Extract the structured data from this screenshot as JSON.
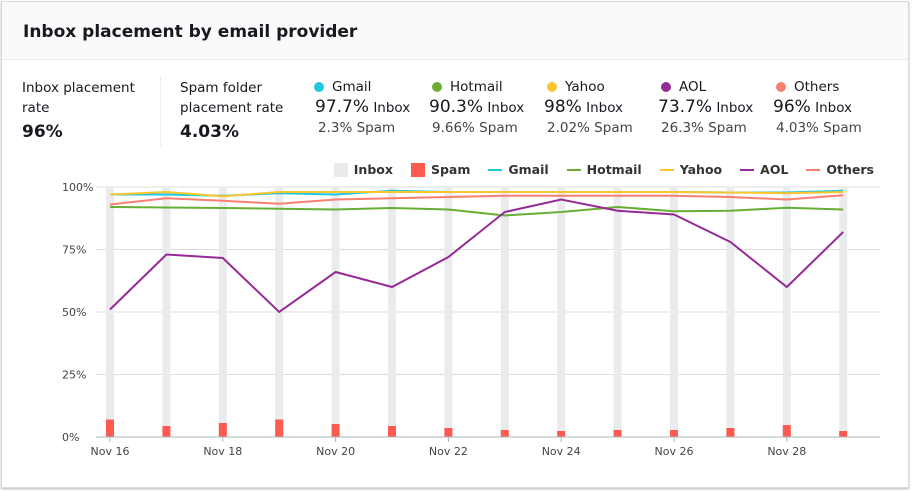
{
  "title": "Inbox placement by email provider",
  "summary": {
    "inbox_label": "Inbox placement rate",
    "inbox_value": "96%",
    "spam_label": "Spam folder placement rate",
    "spam_value": "4.03%"
  },
  "providers": [
    {
      "name": "Gmail",
      "inbox": "97.7%",
      "inbox_label": "Inbox",
      "spam": "2.3% Spam",
      "color": "#1ec8de"
    },
    {
      "name": "Hotmail",
      "inbox": "90.3%",
      "inbox_label": "Inbox",
      "spam": "9.66% Spam",
      "color": "#69ae34"
    },
    {
      "name": "Yahoo",
      "inbox": "98%",
      "inbox_label": "Inbox",
      "spam": "2.02% Spam",
      "color": "#fac62f"
    },
    {
      "name": "AOL",
      "inbox": "73.7%",
      "inbox_label": "Inbox",
      "spam": "26.3% Spam",
      "color": "#962b96"
    },
    {
      "name": "Others",
      "inbox": "96%",
      "inbox_label": "Inbox",
      "spam": "4.03% Spam",
      "color": "#fa7f73"
    }
  ],
  "chart_data": {
    "type": "bar",
    "categories": [
      "Nov 16",
      "Nov 17",
      "Nov 18",
      "Nov 19",
      "Nov 20",
      "Nov 21",
      "Nov 22",
      "Nov 23",
      "Nov 24",
      "Nov 25",
      "Nov 26",
      "Nov 27",
      "Nov 28",
      "Nov 29"
    ],
    "x_tick_labels": [
      "Nov 16",
      "Nov 18",
      "Nov 20",
      "Nov 22",
      "Nov 24",
      "Nov 26",
      "Nov 28"
    ],
    "y_ticks": [
      "0%",
      "25%",
      "50%",
      "75%",
      "100%"
    ],
    "ylim": [
      0,
      100
    ],
    "legend_position": "top-right",
    "inbox_color": "#e9ebed",
    "spam_color": "#ff5a4f",
    "spam": [
      7,
      4.4,
      5.6,
      7,
      5.2,
      4.4,
      3.6,
      2.8,
      2.4,
      2.8,
      2.8,
      3.6,
      4.8,
      2.4
    ],
    "series": [
      {
        "name": "Inbox",
        "kind": "bar",
        "color": "#e9ebed"
      },
      {
        "name": "Spam",
        "kind": "bar",
        "color": "#ff5a4f"
      },
      {
        "name": "Gmail",
        "kind": "line",
        "color": "#1ec8de",
        "values": [
          97,
          97,
          96.5,
          97.5,
          97,
          98.5,
          98,
          98,
          98,
          98,
          98,
          97.8,
          97.8,
          98.5
        ]
      },
      {
        "name": "Hotmail",
        "kind": "line",
        "color": "#69ae34",
        "values": [
          92,
          91.8,
          91.6,
          91.3,
          91,
          91.6,
          91,
          88.6,
          90,
          92,
          90.3,
          90.5,
          91.7,
          91
        ]
      },
      {
        "name": "Yahoo",
        "kind": "line",
        "color": "#fac62f",
        "values": [
          97,
          98,
          96.3,
          98,
          98,
          98,
          98,
          98,
          98,
          98,
          98,
          97.8,
          97.5,
          98
        ]
      },
      {
        "name": "AOL",
        "kind": "line",
        "color": "#962b96",
        "values": [
          51,
          73,
          71.6,
          50,
          66,
          60,
          72,
          90,
          95,
          90.5,
          89,
          78,
          60,
          82
        ]
      },
      {
        "name": "Others",
        "kind": "line",
        "color": "#fa7f73",
        "values": [
          93,
          95.5,
          94.5,
          93.3,
          95,
          95.5,
          96,
          96.5,
          96.5,
          96.5,
          96.5,
          96,
          95,
          96.7
        ]
      }
    ]
  }
}
